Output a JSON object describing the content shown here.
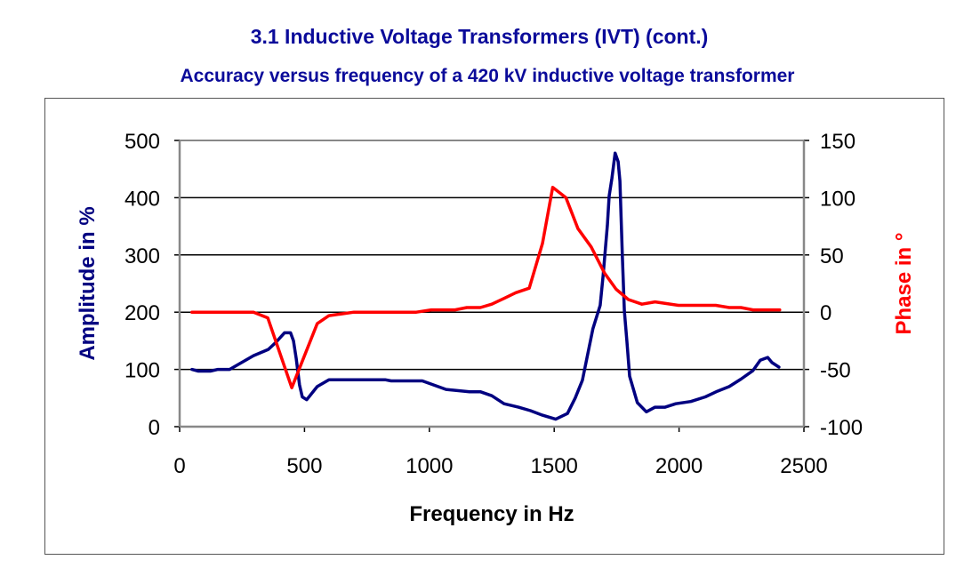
{
  "header": {
    "title": "3.1 Inductive Voltage Transformers (IVT) (cont.)",
    "subtitle": "Accuracy versus frequency of a 420 kV inductive voltage transformer"
  },
  "chart_data": {
    "type": "line",
    "title": "Accuracy versus frequency of a 420 kV inductive voltage transformer",
    "xlabel": "Frequency in Hz",
    "ylabel": "Amplitude in %",
    "y2label": "Phase in °",
    "xlim": [
      0,
      2500
    ],
    "ylim": [
      0,
      500
    ],
    "y2lim": [
      -100,
      150
    ],
    "xticks": [
      "0",
      "500",
      "1000",
      "1500",
      "2000",
      "2500"
    ],
    "yticks": [
      "0",
      "100",
      "200",
      "300",
      "400",
      "500"
    ],
    "y2ticks": [
      "-100",
      "-50",
      "0",
      "50",
      "100",
      "150"
    ],
    "grid": "horizontal",
    "legend": "none",
    "colors": {
      "amplitude": "#000080",
      "phase": "#ff0000",
      "title": "#0b0b9a"
    },
    "series": [
      {
        "axis": "left",
        "points": [
          [
            49,
            100
          ],
          [
            75,
            97
          ],
          [
            123,
            97
          ],
          [
            153,
            100
          ],
          [
            200,
            100
          ],
          [
            296,
            124
          ],
          [
            355,
            135
          ],
          [
            385,
            147
          ],
          [
            420,
            164
          ],
          [
            444,
            164
          ],
          [
            456,
            150
          ],
          [
            467,
            119
          ],
          [
            480,
            73
          ],
          [
            491,
            52
          ],
          [
            509,
            47
          ],
          [
            551,
            70
          ],
          [
            598,
            82
          ],
          [
            823,
            82
          ],
          [
            847,
            80
          ],
          [
            972,
            80
          ],
          [
            1067,
            65
          ],
          [
            1161,
            61
          ],
          [
            1204,
            61
          ],
          [
            1250,
            54
          ],
          [
            1299,
            40
          ],
          [
            1357,
            34
          ],
          [
            1405,
            28
          ],
          [
            1453,
            20
          ],
          [
            1506,
            13
          ],
          [
            1553,
            23
          ],
          [
            1584,
            50
          ],
          [
            1613,
            81
          ],
          [
            1655,
            171
          ],
          [
            1684,
            212
          ],
          [
            1696,
            264
          ],
          [
            1713,
            352
          ],
          [
            1720,
            403
          ],
          [
            1731,
            434
          ],
          [
            1744,
            478
          ],
          [
            1756,
            463
          ],
          [
            1763,
            429
          ],
          [
            1773,
            295
          ],
          [
            1781,
            202
          ],
          [
            1791,
            150
          ],
          [
            1802,
            88
          ],
          [
            1833,
            42
          ],
          [
            1869,
            26
          ],
          [
            1904,
            34
          ],
          [
            1944,
            34
          ],
          [
            1987,
            40
          ],
          [
            2047,
            44
          ],
          [
            2105,
            52
          ],
          [
            2154,
            62
          ],
          [
            2201,
            70
          ],
          [
            2248,
            83
          ],
          [
            2296,
            98
          ],
          [
            2325,
            116
          ],
          [
            2355,
            121
          ],
          [
            2372,
            112
          ],
          [
            2400,
            104
          ]
        ]
      },
      {
        "axis": "right",
        "points": [
          [
            49,
            0
          ],
          [
            296,
            0
          ],
          [
            353,
            -5
          ],
          [
            449,
            -66
          ],
          [
            551,
            -10
          ],
          [
            598,
            -3
          ],
          [
            698,
            0
          ],
          [
            948,
            0
          ],
          [
            1008,
            2
          ],
          [
            1103,
            2
          ],
          [
            1150,
            4
          ],
          [
            1204,
            4
          ],
          [
            1250,
            7
          ],
          [
            1299,
            12
          ],
          [
            1346,
            17
          ],
          [
            1400,
            21
          ],
          [
            1453,
            60
          ],
          [
            1494,
            109
          ],
          [
            1547,
            100
          ],
          [
            1595,
            73
          ],
          [
            1648,
            57
          ],
          [
            1702,
            34
          ],
          [
            1748,
            20
          ],
          [
            1797,
            11
          ],
          [
            1851,
            7
          ],
          [
            1904,
            9
          ],
          [
            1998,
            6
          ],
          [
            2147,
            6
          ],
          [
            2201,
            4
          ],
          [
            2248,
            4
          ],
          [
            2296,
            2
          ],
          [
            2403,
            2
          ]
        ]
      }
    ]
  }
}
